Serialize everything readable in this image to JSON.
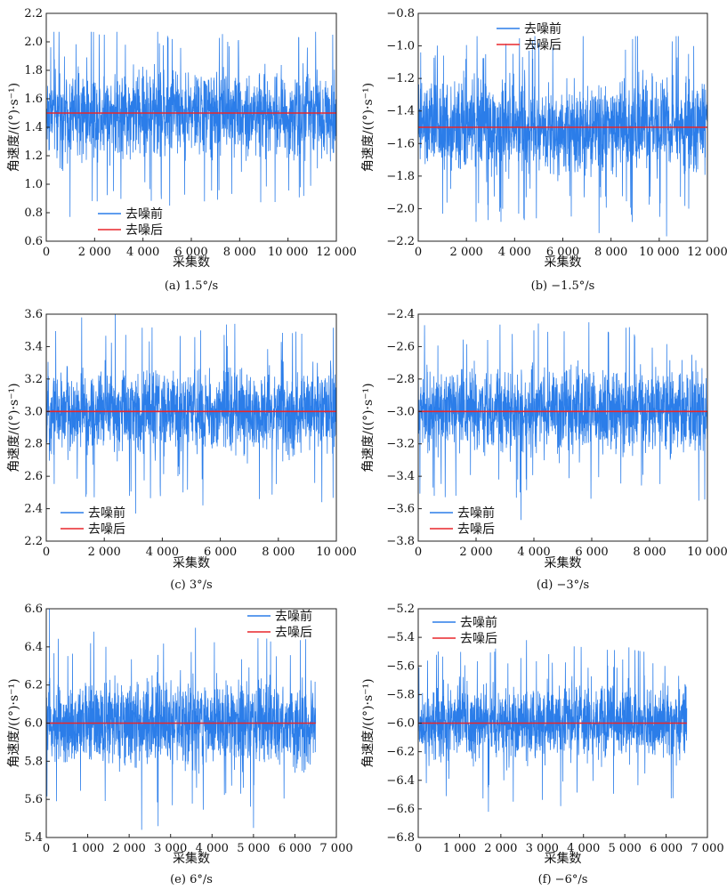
{
  "chart_data": [
    {
      "type": "line",
      "caption": "(a) 1.5°/s",
      "xlabel": "采集数",
      "ylabel": "角速度/((°)·s⁻¹)",
      "xlim": [
        0,
        12000
      ],
      "ylim": [
        0.6,
        2.2
      ],
      "xticks": [
        0,
        2000,
        4000,
        6000,
        8000,
        10000,
        12000
      ],
      "xtick_labels": [
        "0",
        "2 000",
        "4 000",
        "6 000",
        "8 000",
        "10 000",
        "12 000"
      ],
      "yticks": [
        0.6,
        0.8,
        1.0,
        1.2,
        1.4,
        1.6,
        1.8,
        2.0,
        2.2
      ],
      "ytick_labels": [
        "0.6",
        "0.8",
        "1.0",
        "1.2",
        "1.4",
        "1.6",
        "1.8",
        "2.0",
        "2.2"
      ],
      "legend_position": "lower-left",
      "series": [
        {
          "name": "去噪前",
          "color": "#2b7de9",
          "n_samples": 12000,
          "mean": 1.5,
          "min": 0.77,
          "max": 2.07,
          "band": [
            1.12,
            1.88
          ],
          "peaks": [
            [
              320,
              2.07
            ],
            [
              2400,
              2.05
            ],
            [
              7500,
              2.0
            ]
          ],
          "troughs": [
            [
              980,
              0.77
            ],
            [
              5100,
              0.85
            ],
            [
              2100,
              0.88
            ]
          ]
        },
        {
          "name": "去噪后",
          "color": "#e8262b",
          "x": [
            0,
            12000
          ],
          "values": [
            1.5,
            1.5
          ]
        }
      ]
    },
    {
      "type": "line",
      "caption": "(b) −1.5°/s",
      "xlabel": "采集数",
      "ylabel": "角速度/((°)·s⁻¹)",
      "xlim": [
        0,
        12000
      ],
      "ylim": [
        -2.2,
        -0.8
      ],
      "xticks": [
        0,
        2000,
        4000,
        6000,
        8000,
        10000,
        12000
      ],
      "xtick_labels": [
        "0",
        "2 000",
        "4 000",
        "6 000",
        "8 000",
        "10 000",
        "12 000"
      ],
      "yticks": [
        -2.2,
        -2.0,
        -1.8,
        -1.6,
        -1.4,
        -1.2,
        -1.0,
        -0.8
      ],
      "ytick_labels": [
        "−2.2",
        "−2.0",
        "−1.8",
        "−1.6",
        "−1.4",
        "−1.2",
        "−1.0",
        "−0.8"
      ],
      "legend_position": "top-center",
      "series": [
        {
          "name": "去噪前",
          "color": "#2b7de9",
          "n_samples": 12000,
          "mean": -1.5,
          "min": -2.17,
          "max": -0.94,
          "band": [
            -1.85,
            -1.15
          ],
          "peaks": [
            [
              9100,
              -0.94
            ],
            [
              4600,
              -1.03
            ],
            [
              100,
              -1.04
            ]
          ],
          "troughs": [
            [
              10300,
              -2.17
            ],
            [
              7500,
              -2.15
            ],
            [
              2900,
              -2.07
            ]
          ]
        },
        {
          "name": "去噪后",
          "color": "#e8262b",
          "x": [
            0,
            12000
          ],
          "values": [
            -1.5,
            -1.5
          ]
        }
      ]
    },
    {
      "type": "line",
      "caption": "(c) 3°/s",
      "xlabel": "采集数",
      "ylabel": "角速度/((°)·s⁻¹)",
      "xlim": [
        0,
        10000
      ],
      "ylim": [
        2.2,
        3.6
      ],
      "xticks": [
        0,
        2000,
        4000,
        6000,
        8000,
        10000
      ],
      "xtick_labels": [
        "0",
        "2 000",
        "4 000",
        "6 000",
        "8 000",
        "10 000"
      ],
      "yticks": [
        2.2,
        2.4,
        2.6,
        2.8,
        3.0,
        3.2,
        3.4,
        3.6
      ],
      "ytick_labels": [
        "2.2",
        "2.4",
        "2.6",
        "2.8",
        "3.0",
        "3.2",
        "3.4",
        "3.6"
      ],
      "legend_position": "lower-left",
      "series": [
        {
          "name": "去噪前",
          "color": "#2b7de9",
          "n_samples": 10000,
          "mean": 3.0,
          "min": 2.37,
          "max": 3.6,
          "band": [
            2.68,
            3.32
          ],
          "peaks": [
            [
              2380,
              3.6
            ],
            [
              1220,
              3.58
            ],
            [
              6500,
              3.54
            ]
          ],
          "troughs": [
            [
              3080,
              2.37
            ],
            [
              5400,
              2.42
            ],
            [
              9500,
              2.44
            ]
          ]
        },
        {
          "name": "去噪后",
          "color": "#e8262b",
          "x": [
            0,
            10000
          ],
          "values": [
            3.0,
            3.0
          ]
        }
      ]
    },
    {
      "type": "line",
      "caption": "(d) −3°/s",
      "xlabel": "采集数",
      "ylabel": "角速度/((°)·s⁻¹)",
      "xlim": [
        0,
        10000
      ],
      "ylim": [
        -3.8,
        -2.4
      ],
      "xticks": [
        0,
        2000,
        4000,
        6000,
        8000,
        10000
      ],
      "xtick_labels": [
        "0",
        "2 000",
        "4 000",
        "6 000",
        "8 000",
        "10 000"
      ],
      "yticks": [
        -3.8,
        -3.6,
        -3.4,
        -3.2,
        -3.0,
        -2.8,
        -2.6,
        -2.4
      ],
      "ytick_labels": [
        "−3.8",
        "−3.6",
        "−3.4",
        "−3.2",
        "−3.0",
        "−2.8",
        "−2.6",
        "−2.4"
      ],
      "legend_position": "lower-left",
      "series": [
        {
          "name": "去噪前",
          "color": "#2b7de9",
          "n_samples": 10000,
          "mean": -3.0,
          "min": -3.67,
          "max": -2.45,
          "band": [
            -3.32,
            -2.68
          ],
          "peaks": [
            [
              5900,
              -2.45
            ],
            [
              4000,
              -2.5
            ],
            [
              7300,
              -2.48
            ]
          ],
          "troughs": [
            [
              3550,
              -3.67
            ],
            [
              9700,
              -3.55
            ],
            [
              1300,
              -3.52
            ]
          ]
        },
        {
          "name": "去噪后",
          "color": "#e8262b",
          "x": [
            0,
            10000
          ],
          "values": [
            -3.0,
            -3.0
          ]
        }
      ]
    },
    {
      "type": "line",
      "caption": "(e) 6°/s",
      "xlabel": "采集数",
      "ylabel": "角速度/((°)·s⁻¹)",
      "xlim": [
        0,
        7000
      ],
      "ylim": [
        5.4,
        6.6
      ],
      "xticks": [
        0,
        1000,
        2000,
        3000,
        4000,
        5000,
        6000,
        7000
      ],
      "xtick_labels": [
        "0",
        "1 000",
        "2 000",
        "3 000",
        "4 000",
        "5 000",
        "6 000",
        "7 000"
      ],
      "yticks": [
        5.4,
        5.6,
        5.8,
        6.0,
        6.2,
        6.4,
        6.6
      ],
      "ytick_labels": [
        "5.4",
        "5.6",
        "5.8",
        "6.0",
        "6.2",
        "6.4",
        "6.6"
      ],
      "legend_position": "top-right",
      "series": [
        {
          "name": "去噪前",
          "color": "#2b7de9",
          "n_samples": 6500,
          "mean": 6.0,
          "min": 5.44,
          "max": 6.6,
          "band": [
            5.73,
            6.27
          ],
          "peaks": [
            [
              80,
              6.6
            ],
            [
              3600,
              6.5
            ],
            [
              1150,
              6.48
            ]
          ],
          "troughs": [
            [
              2300,
              5.44
            ],
            [
              5000,
              5.45
            ],
            [
              2700,
              5.46
            ]
          ]
        },
        {
          "name": "去噪后",
          "color": "#e8262b",
          "x": [
            0,
            6500
          ],
          "values": [
            6.0,
            6.0
          ]
        }
      ]
    },
    {
      "type": "line",
      "caption": "(f) −6°/s",
      "xlabel": "采集数",
      "ylabel": "角速度/((°)·s⁻¹)",
      "xlim": [
        0,
        7000
      ],
      "ylim": [
        -6.8,
        -5.2
      ],
      "xticks": [
        0,
        1000,
        2000,
        3000,
        4000,
        5000,
        6000,
        7000
      ],
      "xtick_labels": [
        "0",
        "1 000",
        "2 000",
        "3 000",
        "4 000",
        "5 000",
        "6 000",
        "7 000"
      ],
      "yticks": [
        -6.8,
        -6.6,
        -6.4,
        -6.2,
        -6.0,
        -5.8,
        -5.6,
        -5.4,
        -5.2
      ],
      "ytick_labels": [
        "−6.8",
        "−6.6",
        "−6.4",
        "−6.2",
        "−6.0",
        "−5.8",
        "−5.6",
        "−5.4",
        "−5.2"
      ],
      "legend_position": "top-left",
      "series": [
        {
          "name": "去噪前",
          "color": "#2b7de9",
          "n_samples": 6500,
          "mean": -6.0,
          "min": -6.62,
          "max": -5.42,
          "band": [
            -6.32,
            -5.68
          ],
          "peaks": [
            [
              2620,
              -5.42
            ],
            [
              5100,
              -5.47
            ],
            [
              1850,
              -5.5
            ]
          ],
          "troughs": [
            [
              1700,
              -6.62
            ],
            [
              3450,
              -6.58
            ],
            [
              2300,
              -6.55
            ]
          ]
        },
        {
          "name": "去噪后",
          "color": "#e8262b",
          "x": [
            0,
            6500
          ],
          "values": [
            -6.0,
            -6.0
          ]
        }
      ]
    }
  ]
}
